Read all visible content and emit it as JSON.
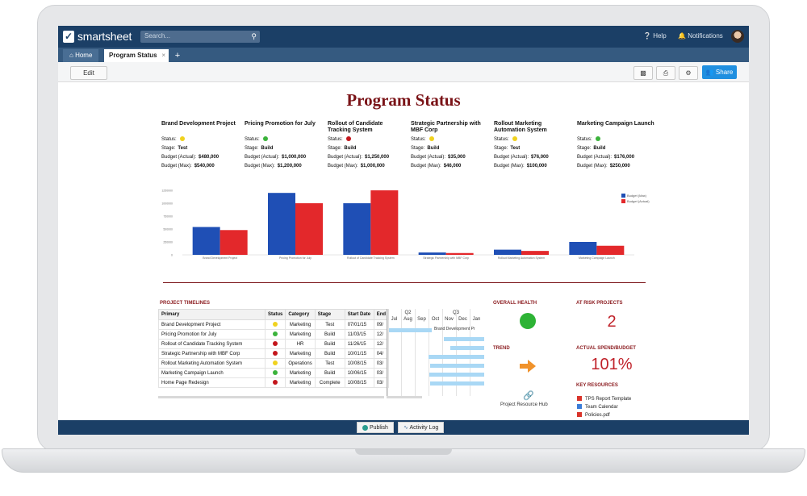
{
  "app": {
    "logo_text": "smartsheet",
    "search_placeholder": "Search...",
    "help_label": "Help",
    "notifications_label": "Notifications"
  },
  "tabs": {
    "home_label": "Home",
    "active_label": "Program Status",
    "close_glyph": "×",
    "add_glyph": "+"
  },
  "toolbar": {
    "edit_label": "Edit",
    "share_label": "Share"
  },
  "dashboard": {
    "title": "Program Status",
    "labels": {
      "status": "Status:",
      "stage": "Stage:",
      "budget_actual": "Budget (Actual):",
      "budget_max": "Budget (Max):"
    },
    "projects": [
      {
        "name": "Brand Development Project",
        "status_color": "#f0d21e",
        "stage": "Test",
        "budget_actual": "$480,000",
        "budget_max": "$540,000"
      },
      {
        "name": "Pricing Promotion for July",
        "status_color": "#3bb33b",
        "stage": "Build",
        "budget_actual": "$1,000,000",
        "budget_max": "$1,200,000"
      },
      {
        "name": "Rollout of Candidate Tracking System",
        "status_color": "#c4161c",
        "stage": "Build",
        "budget_actual": "$1,250,000",
        "budget_max": "$1,000,000"
      },
      {
        "name": "Strategic Partnership with MBF Corp",
        "status_color": "#f0d21e",
        "stage": "Build",
        "budget_actual": "$35,000",
        "budget_max": "$46,000"
      },
      {
        "name": "Rollout Marketing Automation System",
        "status_color": "#f0d21e",
        "stage": "Test",
        "budget_actual": "$76,000",
        "budget_max": "$100,000"
      },
      {
        "name": "Marketing Campaign Launch",
        "status_color": "#3bb33b",
        "stage": "Build",
        "budget_actual": "$176,000",
        "budget_max": "$250,000"
      }
    ],
    "project_timelines_title": "PROJECT TIMELINES",
    "overall_health_title": "OVERALL HEALTH",
    "overall_health_color": "#2db335",
    "trend_title": "TREND",
    "at_risk_title": "AT RISK PROJECTS",
    "at_risk_value": "2",
    "spend_title": "ACTUAL SPEND/BUDGET",
    "spend_value": "101%",
    "key_resources_title": "KEY RESOURCES",
    "resource_hub_label": "Project Resource Hub",
    "key_resources": [
      {
        "label": "TPS Report Template",
        "color": "#d9342b"
      },
      {
        "label": "Team Calendar",
        "color": "#3b7dd8"
      },
      {
        "label": "Policies.pdf",
        "color": "#d9342b"
      }
    ]
  },
  "chart_data": {
    "type": "bar",
    "categories": [
      "Brand Development Project",
      "Pricing Promotion for July",
      "Rollout of Candidate Tracking System",
      "Strategic Partnership with MBF Corp",
      "Rollout Marketing Automation System",
      "Marketing Campaign Launch"
    ],
    "series": [
      {
        "name": "Budget (Max)",
        "color": "#1f4fb5",
        "values": [
          540000,
          1200000,
          1000000,
          46000,
          100000,
          250000
        ]
      },
      {
        "name": "Budget (Actual)",
        "color": "#e3282b",
        "values": [
          480000,
          1000000,
          1250000,
          35000,
          76000,
          176000
        ]
      }
    ],
    "y_ticks": [
      "0",
      "250000",
      "500000",
      "750000",
      "1000000",
      "1250000"
    ],
    "ylim": [
      0,
      1250000
    ],
    "legend_position": "top-right",
    "grid": false
  },
  "timeline": {
    "columns": [
      "Primary",
      "Status",
      "Category",
      "Stage",
      "Start Date",
      "End"
    ],
    "rows": [
      {
        "primary": "Brand Development Project",
        "status_color": "#f0d21e",
        "category": "Marketing",
        "stage": "Test",
        "start": "07/01/15",
        "end": "09/"
      },
      {
        "primary": "Pricing Promotion for July",
        "status_color": "#3bb33b",
        "category": "Marketing",
        "stage": "Build",
        "start": "11/03/15",
        "end": "12/"
      },
      {
        "primary": "Rollout of Candidate Tracking System",
        "status_color": "#c4161c",
        "category": "HR",
        "stage": "Build",
        "start": "11/26/15",
        "end": "12/"
      },
      {
        "primary": "Strategic Partnership with MBF Corp",
        "status_color": "#c4161c",
        "category": "Marketing",
        "stage": "Build",
        "start": "10/01/15",
        "end": "04/"
      },
      {
        "primary": "Rollout Marketing Automation System",
        "status_color": "#f0d21e",
        "category": "Operations",
        "stage": "Test",
        "start": "10/08/15",
        "end": "03/"
      },
      {
        "primary": "Marketing Campaign Launch",
        "status_color": "#3bb33b",
        "category": "Marketing",
        "stage": "Build",
        "start": "10/06/15",
        "end": "03/"
      },
      {
        "primary": "Home Page Redesign",
        "status_color": "#c4161c",
        "category": "Marketing",
        "stage": "Complete",
        "start": "10/08/15",
        "end": "03/"
      }
    ],
    "gantt": {
      "quarters": [
        "Q2",
        "Q3"
      ],
      "months": [
        "Jul",
        "Aug",
        "Sep",
        "Oct",
        "Nov",
        "Dec",
        "Jan"
      ],
      "bar_label": "Brand Development Pr"
    }
  },
  "bottom": {
    "publish_label": "Publish",
    "activity_label": "Activity Log"
  }
}
